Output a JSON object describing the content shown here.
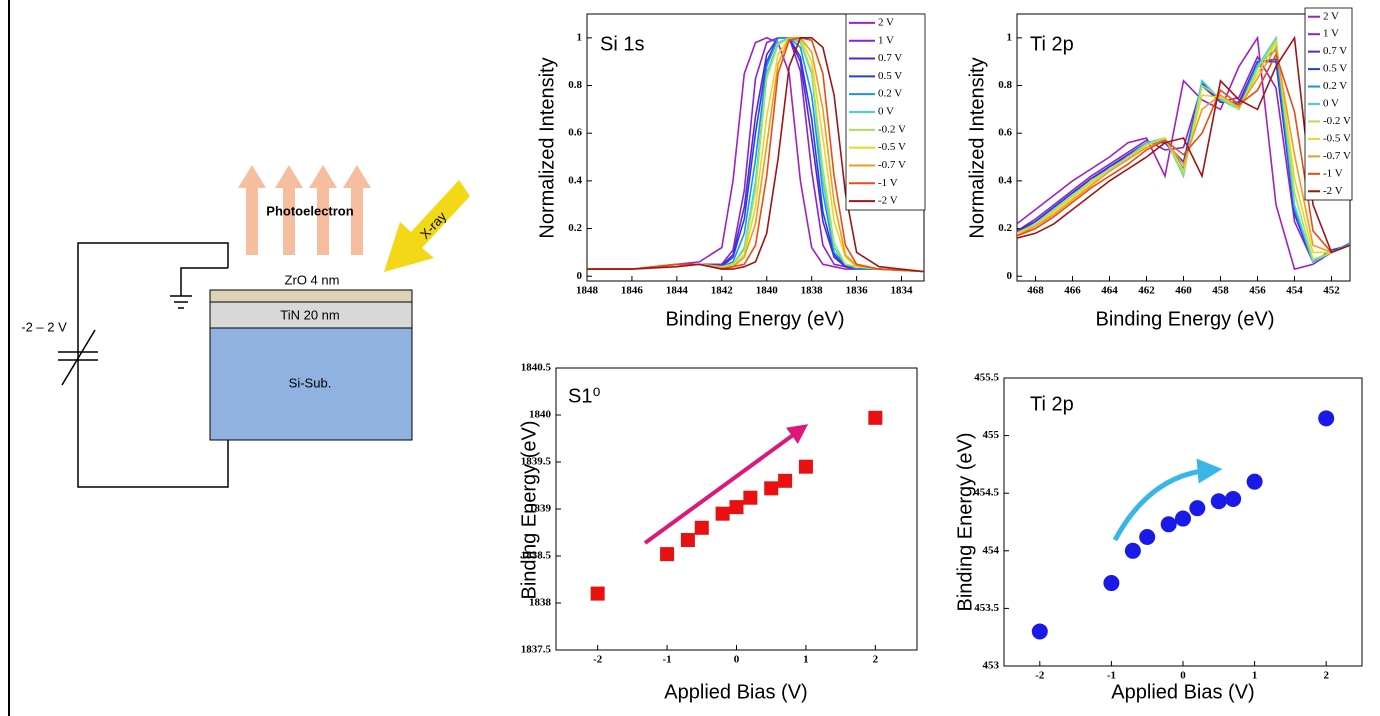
{
  "diagram": {
    "photoelectron": "Photoelectron",
    "xray": "X-ray",
    "layers": [
      "ZrO 4 nm",
      "TiN 20 nm",
      "Si-Sub."
    ],
    "bias": "-2 – 2 V"
  },
  "chart_data": [
    {
      "type": "line",
      "title": "Si 1s",
      "x_label": "Binding Energy (eV)",
      "y_label": "Normalized Intensity",
      "x": [
        1848,
        1846,
        1844,
        1843,
        1842,
        1841.5,
        1841,
        1840.5,
        1840,
        1839.5,
        1839,
        1838.5,
        1838,
        1837.5,
        1837,
        1836.5,
        1836,
        1835,
        1833
      ],
      "series": [
        {
          "name": "2 V",
          "color": "#a21fc4",
          "values": [
            0.03,
            0.03,
            0.05,
            0.06,
            0.12,
            0.4,
            0.85,
            0.98,
            1,
            0.98,
            0.85,
            0.4,
            0.12,
            0.05,
            0.04,
            0.03,
            0.03,
            0.03,
            0.02
          ]
        },
        {
          "name": "1 V",
          "color": "#8b22d6",
          "values": [
            0.03,
            0.03,
            0.05,
            0.05,
            0.05,
            0.11,
            0.36,
            0.83,
            0.98,
            1,
            1,
            0.86,
            0.44,
            0.13,
            0.05,
            0.04,
            0.03,
            0.03,
            0.02
          ]
        },
        {
          "name": "0.7 V",
          "color": "#5a24d0",
          "values": [
            0.03,
            0.03,
            0.05,
            0.05,
            0.045,
            0.09,
            0.29,
            0.67,
            0.93,
            1,
            1,
            0.9,
            0.58,
            0.23,
            0.08,
            0.04,
            0.03,
            0.03,
            0.02
          ]
        },
        {
          "name": "0.5 V",
          "color": "#2040e0",
          "values": [
            0.03,
            0.03,
            0.05,
            0.05,
            0.04,
            0.08,
            0.24,
            0.6,
            0.9,
            1,
            1,
            0.92,
            0.66,
            0.27,
            0.09,
            0.045,
            0.03,
            0.03,
            0.02
          ]
        },
        {
          "name": "0.2 V",
          "color": "#1e90e8",
          "values": [
            0.03,
            0.03,
            0.05,
            0.05,
            0.04,
            0.06,
            0.18,
            0.49,
            0.88,
            1,
            1,
            0.96,
            0.76,
            0.35,
            0.1,
            0.05,
            0.03,
            0.03,
            0.02
          ]
        },
        {
          "name": "0 V",
          "color": "#40d8d0",
          "values": [
            0.03,
            0.03,
            0.05,
            0.05,
            0.04,
            0.05,
            0.12,
            0.4,
            0.85,
            0.98,
            1,
            0.98,
            0.85,
            0.4,
            0.12,
            0.05,
            0.04,
            0.03,
            0.02
          ]
        },
        {
          "name": "-0.2 V",
          "color": "#a8e060",
          "values": [
            0.03,
            0.03,
            0.05,
            0.05,
            0.04,
            0.05,
            0.11,
            0.36,
            0.83,
            0.97,
            1,
            0.99,
            0.86,
            0.45,
            0.14,
            0.05,
            0.04,
            0.03,
            0.02
          ]
        },
        {
          "name": "-0.5 V",
          "color": "#e8d81e",
          "values": [
            0.03,
            0.03,
            0.05,
            0.05,
            0.035,
            0.045,
            0.09,
            0.29,
            0.67,
            0.93,
            1,
            1,
            0.9,
            0.58,
            0.23,
            0.08,
            0.04,
            0.03,
            0.02
          ]
        },
        {
          "name": "-0.7 V",
          "color": "#f29a1e",
          "values": [
            0.03,
            0.03,
            0.05,
            0.05,
            0.035,
            0.04,
            0.08,
            0.22,
            0.55,
            0.89,
            1,
            1,
            0.94,
            0.7,
            0.31,
            0.09,
            0.045,
            0.03,
            0.02
          ]
        },
        {
          "name": "-1 V",
          "color": "#e84c14",
          "values": [
            0.03,
            0.03,
            0.05,
            0.05,
            0.03,
            0.04,
            0.05,
            0.13,
            0.42,
            0.85,
            0.99,
            1,
            0.99,
            0.85,
            0.42,
            0.13,
            0.05,
            0.03,
            0.02
          ]
        },
        {
          "name": "-2 V",
          "color": "#a01414",
          "values": [
            0.03,
            0.03,
            0.04,
            0.05,
            0.03,
            0.03,
            0.04,
            0.06,
            0.18,
            0.49,
            0.88,
            1,
            1,
            0.96,
            0.76,
            0.35,
            0.1,
            0.04,
            0.02
          ]
        }
      ],
      "xlim": [
        1848,
        1833
      ],
      "ylim": [
        -0.02,
        1.1
      ],
      "xticks": [
        1848,
        1846,
        1844,
        1842,
        1840,
        1838,
        1836,
        1834
      ],
      "yticks": [
        0,
        0.2,
        0.4,
        0.6,
        0.8,
        1
      ],
      "legend": "upper right"
    },
    {
      "type": "line",
      "title": "Ti 2p",
      "x_label": "Binding Energy (eV)",
      "y_label": "Normalized Intensity",
      "x": [
        469,
        468,
        467,
        466,
        465,
        464,
        463,
        462,
        461,
        460,
        459,
        458,
        457,
        456,
        455,
        454,
        453,
        452,
        451
      ],
      "series": [
        {
          "name": "2 V",
          "color": "#a21fc4",
          "values": [
            0.22,
            0.28,
            0.34,
            0.4,
            0.45,
            0.5,
            0.56,
            0.58,
            0.42,
            0.82,
            0.74,
            0.7,
            0.88,
            1,
            0.3,
            0.03,
            0.05,
            0.1,
            0.13
          ]
        },
        {
          "name": "1 V",
          "color": "#8b22d6",
          "values": [
            0.19,
            0.24,
            0.3,
            0.36,
            0.42,
            0.47,
            0.52,
            0.57,
            0.53,
            0.54,
            0.8,
            0.73,
            0.75,
            0.92,
            0.79,
            0.23,
            0.06,
            0.1,
            0.13
          ]
        },
        {
          "name": "0.7 V",
          "color": "#5a24d0",
          "values": [
            0.19,
            0.23,
            0.29,
            0.35,
            0.41,
            0.46,
            0.51,
            0.56,
            0.56,
            0.48,
            0.81,
            0.73,
            0.73,
            0.9,
            0.9,
            0.26,
            0.06,
            0.1,
            0.13
          ]
        },
        {
          "name": "0.5 V",
          "color": "#2040e0",
          "values": [
            0.18,
            0.23,
            0.29,
            0.35,
            0.4,
            0.46,
            0.5,
            0.56,
            0.56,
            0.47,
            0.81,
            0.74,
            0.72,
            0.9,
            0.91,
            0.27,
            0.06,
            0.11,
            0.13
          ]
        },
        {
          "name": "0.2 V",
          "color": "#1e90e8",
          "values": [
            0.18,
            0.22,
            0.28,
            0.34,
            0.4,
            0.45,
            0.5,
            0.56,
            0.57,
            0.45,
            0.82,
            0.74,
            0.71,
            0.89,
            0.95,
            0.28,
            0.06,
            0.1,
            0.14
          ]
        },
        {
          "name": "0 V",
          "color": "#40d8d0",
          "values": [
            0.18,
            0.22,
            0.28,
            0.34,
            0.4,
            0.45,
            0.5,
            0.56,
            0.58,
            0.42,
            0.82,
            0.74,
            0.7,
            0.88,
            1,
            0.3,
            0.06,
            0.1,
            0.13
          ]
        },
        {
          "name": "-0.2 V",
          "color": "#a8e060",
          "values": [
            0.18,
            0.22,
            0.28,
            0.34,
            0.4,
            0.45,
            0.5,
            0.55,
            0.58,
            0.43,
            0.8,
            0.75,
            0.7,
            0.87,
            0.99,
            0.35,
            0.07,
            0.1,
            0.13
          ]
        },
        {
          "name": "-0.5 V",
          "color": "#e8d81e",
          "values": [
            0.18,
            0.21,
            0.27,
            0.33,
            0.39,
            0.44,
            0.49,
            0.55,
            0.58,
            0.44,
            0.76,
            0.75,
            0.71,
            0.85,
            0.98,
            0.41,
            0.1,
            0.1,
            0.13
          ]
        },
        {
          "name": "-0.7 V",
          "color": "#f29a1e",
          "values": [
            0.17,
            0.21,
            0.26,
            0.32,
            0.38,
            0.44,
            0.49,
            0.54,
            0.57,
            0.47,
            0.7,
            0.76,
            0.71,
            0.83,
            0.96,
            0.51,
            0.13,
            0.1,
            0.13
          ]
        },
        {
          "name": "-1 V",
          "color": "#e84c14",
          "values": [
            0.17,
            0.2,
            0.25,
            0.31,
            0.37,
            0.42,
            0.47,
            0.53,
            0.57,
            0.51,
            0.6,
            0.78,
            0.72,
            0.78,
            0.93,
            0.69,
            0.19,
            0.1,
            0.13
          ]
        },
        {
          "name": "-2 V",
          "color": "#a01414",
          "values": [
            0.16,
            0.18,
            0.22,
            0.28,
            0.34,
            0.4,
            0.45,
            0.5,
            0.56,
            0.58,
            0.42,
            0.82,
            0.74,
            0.7,
            0.88,
            1,
            0.3,
            0.1,
            0.13
          ]
        }
      ],
      "xlim": [
        469,
        451
      ],
      "ylim": [
        -0.02,
        1.1
      ],
      "xticks": [
        468,
        466,
        464,
        462,
        460,
        458,
        456,
        454,
        452
      ],
      "yticks": [
        0,
        0.2,
        0.4,
        0.6,
        0.8,
        1
      ],
      "legend": "upper right"
    },
    {
      "type": "scatter",
      "title": "S1⁰",
      "x_label": "Applied Bias (V)",
      "y_label": "Binding Energy (eV)",
      "x": [
        -2,
        -1,
        -0.7,
        -0.5,
        -0.2,
        0,
        0.2,
        0.5,
        0.7,
        1,
        2
      ],
      "values": [
        1838.1,
        1838.52,
        1838.67,
        1838.8,
        1838.95,
        1839.02,
        1839.12,
        1839.22,
        1839.3,
        1839.45,
        1839.97
      ],
      "color": "#e81010",
      "marker": "square",
      "xlim": [
        -2.6,
        2.6
      ],
      "ylim": [
        1837.5,
        1840.5
      ],
      "xticks": [
        -2,
        -1,
        0,
        1,
        2
      ],
      "yticks": [
        1837.5,
        1838,
        1838.5,
        1839,
        1839.5,
        1840,
        1840.5
      ]
    },
    {
      "type": "scatter",
      "title": "Ti 2p",
      "x_label": "Applied Bias (V)",
      "y_label": "Binding Energy (eV)",
      "x": [
        -2,
        -1,
        -0.7,
        -0.5,
        -0.2,
        0,
        0.2,
        0.5,
        0.7,
        1,
        2
      ],
      "values": [
        453.3,
        453.72,
        454.0,
        454.12,
        454.23,
        454.28,
        454.37,
        454.43,
        454.45,
        454.6,
        455.15
      ],
      "color": "#1a1ae8",
      "marker": "circle",
      "xlim": [
        -2.5,
        2.5
      ],
      "ylim": [
        453,
        455.5
      ],
      "xticks": [
        -2,
        -1,
        0,
        1,
        2
      ],
      "yticks": [
        453,
        453.5,
        454,
        454.5,
        455,
        455.5
      ]
    }
  ]
}
